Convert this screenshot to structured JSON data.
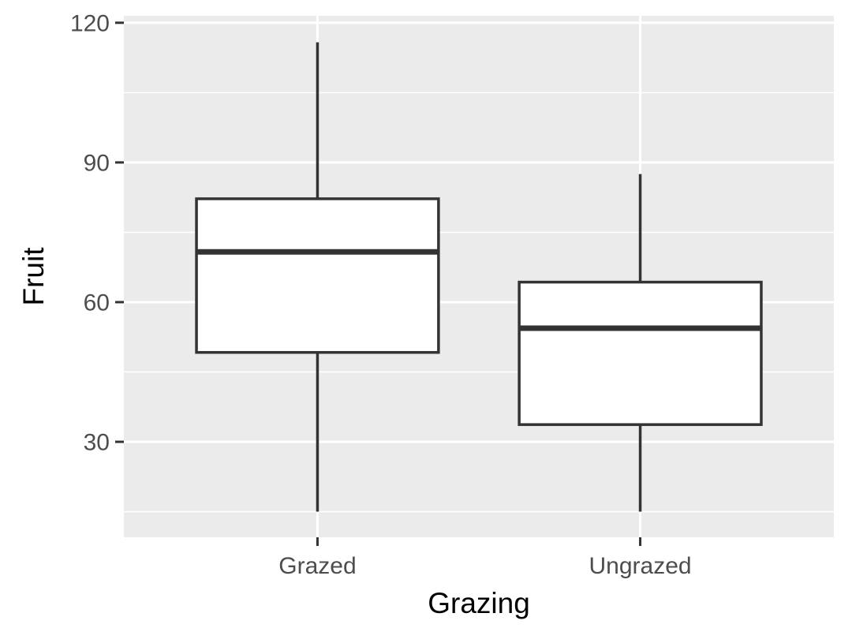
{
  "chart_data": {
    "type": "boxplot",
    "xlabel": "Grazing",
    "ylabel": "Fruit",
    "ylim": [
      9.5,
      121.5
    ],
    "yticks": [
      30,
      60,
      90,
      120
    ],
    "y_minor_ticks": [
      15,
      45,
      75,
      105
    ],
    "grid": true,
    "legend": "none",
    "categories": [
      "Grazed",
      "Ungrazed"
    ],
    "boxes": [
      {
        "category": "Grazed",
        "whisker_low": 15.0,
        "q1": 49.2,
        "median": 70.8,
        "q3": 82.2,
        "whisker_high": 115.8
      },
      {
        "category": "Ungrazed",
        "whisker_low": 15.0,
        "q1": 33.7,
        "median": 54.4,
        "q3": 64.3,
        "whisker_high": 87.5
      }
    ],
    "colors": {
      "panel_background": "#ebebeb",
      "grid_major": "#ffffff",
      "grid_minor": "#ffffff",
      "box_fill": "#ffffff",
      "box_line": "#333333",
      "tick": "#333333"
    }
  }
}
